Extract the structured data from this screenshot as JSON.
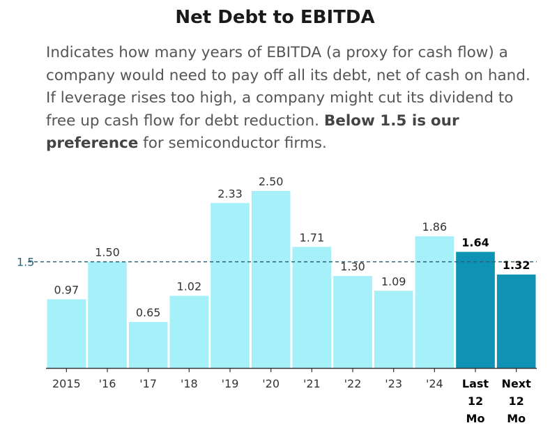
{
  "header": {
    "title": "Net Debt to EBITDA",
    "description_part1": "Indicates how many years of EBITDA (a proxy for cash flow) a company would need to pay off all its debt, net of cash on hand. If leverage rises too high, a company might cut its dividend to free up cash flow for debt reduction. ",
    "description_bold1": "Below 1.5 is",
    "description_part2": " ",
    "description_bold2": "our preference",
    "description_part3": " for semiconductor firms."
  },
  "colors": {
    "historical_bar": "#a6f0fa",
    "forecast_bar": "#0f93b4",
    "reference_line": "#2f6278",
    "axis": "#333333",
    "label": "#333333",
    "reference_label": "#2f6278"
  },
  "chart_data": {
    "type": "bar",
    "title": "Net Debt to EBITDA",
    "xlabel": "",
    "ylabel": "",
    "ylim": [
      0,
      2.5
    ],
    "grid": false,
    "categories": [
      "2015",
      "'16",
      "'17",
      "'18",
      "'19",
      "'20",
      "'21",
      "'22",
      "'23",
      "'24",
      "Last 12 Mo",
      "Next 12 Mo"
    ],
    "category_label_lines": [
      [
        "2015"
      ],
      [
        "'16"
      ],
      [
        "'17"
      ],
      [
        "'18"
      ],
      [
        "'19"
      ],
      [
        "'20"
      ],
      [
        "'21"
      ],
      [
        "'22"
      ],
      [
        "'23"
      ],
      [
        "'24"
      ],
      [
        "Last",
        "12",
        "Mo"
      ],
      [
        "Next",
        "12",
        "Mo"
      ]
    ],
    "values": [
      0.97,
      1.5,
      0.65,
      1.02,
      2.33,
      2.5,
      1.71,
      1.3,
      1.09,
      1.86,
      1.64,
      1.32
    ],
    "value_labels": [
      "0.97",
      "1.50",
      "0.65",
      "1.02",
      "2.33",
      "2.50",
      "1.71",
      "1.30",
      "1.09",
      "1.86",
      "1.64",
      "1.32"
    ],
    "highlighted": [
      false,
      false,
      false,
      false,
      false,
      false,
      false,
      false,
      false,
      false,
      true,
      true
    ],
    "reference_line": {
      "value": 1.5,
      "label": "1.5"
    }
  }
}
